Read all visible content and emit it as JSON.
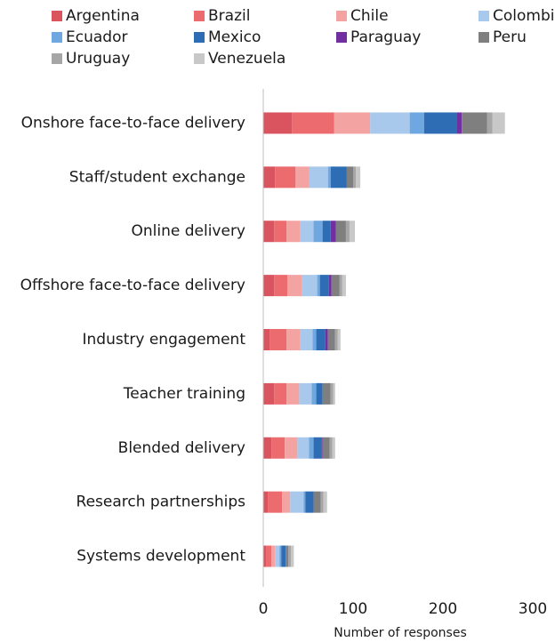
{
  "chart_data": {
    "type": "stacked_barh",
    "x_label": "Number of responses",
    "categories": [
      "Onshore face-to-face delivery",
      "Staff/student exchange",
      "Online delivery",
      "Offshore face-to-face delivery",
      "Industry engagement",
      "Teacher training",
      "Blended delivery",
      "Research partnerships",
      "Systems development"
    ],
    "series": [
      {
        "name": "Argentina",
        "color": "#d9545f",
        "values": [
          32,
          13,
          12,
          12,
          7,
          12,
          9,
          5,
          3
        ]
      },
      {
        "name": "Brazil",
        "color": "#ec6b6e",
        "values": [
          47,
          23,
          14,
          15,
          19,
          14,
          15,
          16,
          6
        ]
      },
      {
        "name": "Chile",
        "color": "#f4a3a3",
        "values": [
          40,
          15,
          15,
          16,
          15,
          14,
          14,
          9,
          4
        ]
      },
      {
        "name": "Colombia",
        "color": "#a9c9ec",
        "values": [
          44,
          21,
          15,
          17,
          14,
          14,
          13,
          15,
          5
        ]
      },
      {
        "name": "Ecuador",
        "color": "#6fa7e0",
        "values": [
          16,
          3,
          10,
          3,
          4,
          5,
          5,
          2,
          2
        ]
      },
      {
        "name": "Mexico",
        "color": "#2e6db4",
        "values": [
          36,
          18,
          9,
          10,
          10,
          7,
          9,
          9,
          5
        ]
      },
      {
        "name": "Paraguay",
        "color": "#7030a0",
        "values": [
          6,
          0,
          6,
          3,
          3,
          0,
          1,
          0,
          0
        ]
      },
      {
        "name": "Peru",
        "color": "#7f7f7f",
        "values": [
          28,
          7,
          11,
          9,
          8,
          9,
          8,
          8,
          3
        ]
      },
      {
        "name": "Uruguay",
        "color": "#a6a6a6",
        "values": [
          6,
          3,
          4,
          3,
          3,
          3,
          3,
          3,
          3
        ]
      },
      {
        "name": "Venezuela",
        "color": "#c8c8c8",
        "values": [
          14,
          5,
          6,
          4,
          3,
          2,
          3,
          4,
          3
        ]
      }
    ],
    "xlim": [
      0,
      300
    ],
    "xticks": [
      0,
      100,
      200,
      300
    ],
    "grid": false
  }
}
